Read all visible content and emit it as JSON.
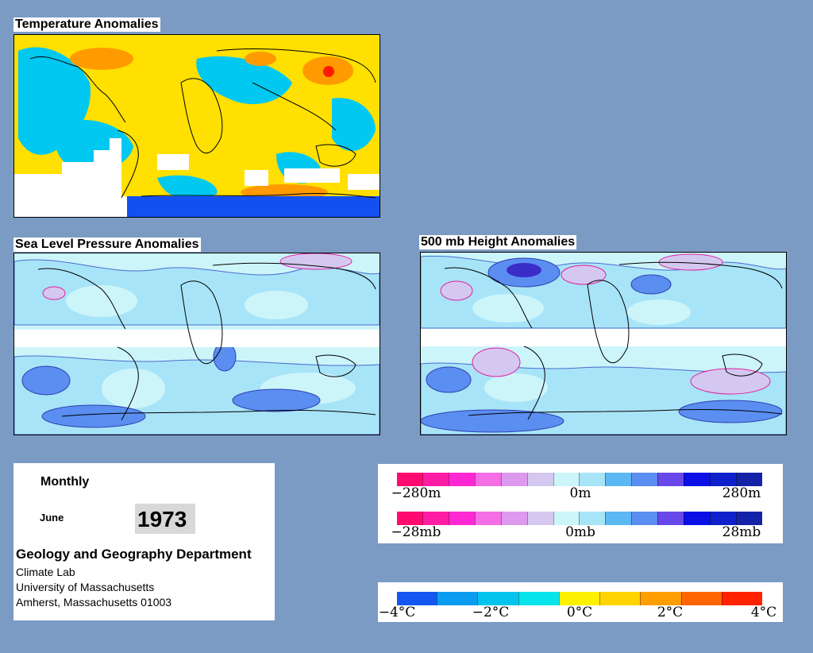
{
  "maps": {
    "temperature": {
      "title": "Temperature Anomalies"
    },
    "slp": {
      "title": "Sea Level Pressure Anomalies"
    },
    "height500": {
      "title": "500 mb Height Anomalies"
    }
  },
  "info": {
    "period": "Monthly",
    "month": "June",
    "year": "1973",
    "department": "Geology and Geography Department",
    "address_lines": [
      "Climate Lab",
      "University of Massachusetts",
      "Amherst, Massachusetts 01003"
    ]
  },
  "legends": {
    "height": {
      "labels": [
        "−280m",
        "0m",
        "280m"
      ]
    },
    "pressure": {
      "labels": [
        "−28mb",
        "0mb",
        "28mb"
      ]
    },
    "temperature": {
      "labels": [
        "−4°C",
        "−2°C",
        "0°C",
        "2°C",
        "4°C"
      ]
    }
  },
  "colors": {
    "anomaly_scale": [
      "#ff0a6e",
      "#ff1ca4",
      "#ff28d2",
      "#f46ee6",
      "#dd99ee",
      "#d4c8f0",
      "#ccf5fa",
      "#a8e4f8",
      "#5cb8f2",
      "#5a8ef0",
      "#6848ea",
      "#0a10e6",
      "#0d20cc",
      "#1422a8"
    ],
    "temperature_scale": [
      "#1456f0",
      "#0a9cf0",
      "#04c4ec",
      "#08e4ec",
      "#fff000",
      "#ffd400",
      "#ff9e00",
      "#ff6600",
      "#ff2200"
    ],
    "background": "#7b9bc4"
  }
}
